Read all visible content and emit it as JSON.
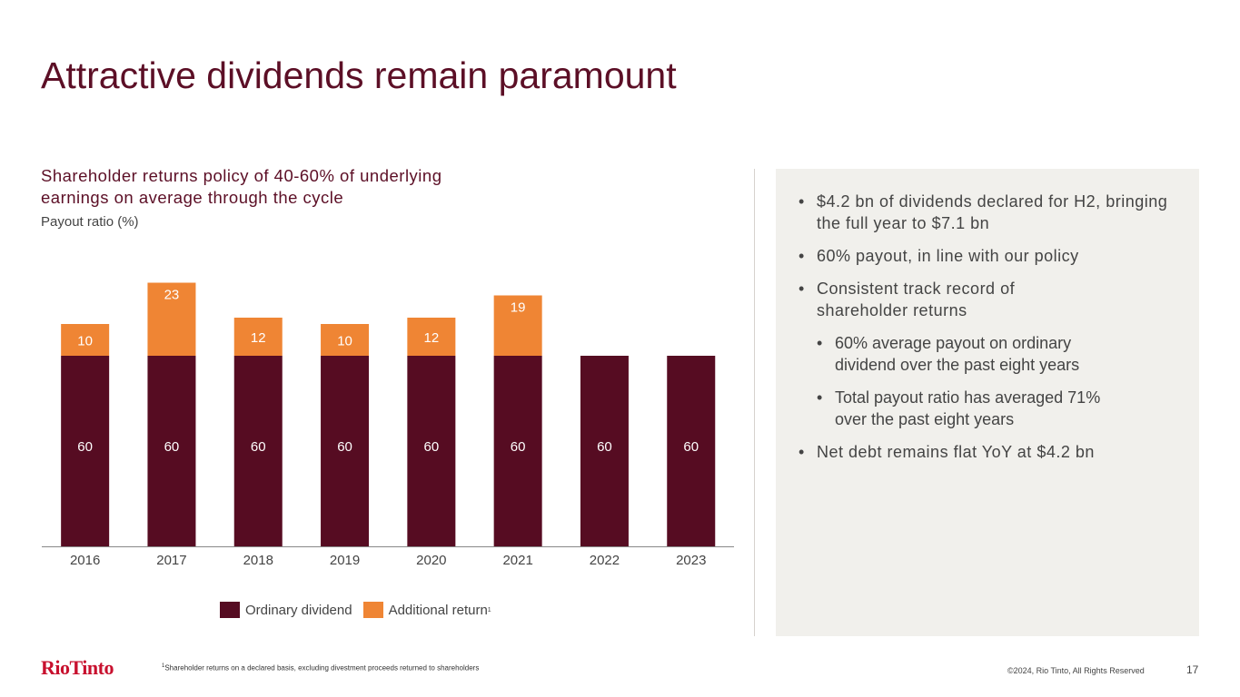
{
  "slide": {
    "title": "Attractive dividends remain paramount",
    "subtitle": "Shareholder returns policy of 40-60% of underlying earnings on average through the cycle",
    "unit_label": "Payout ratio (%)"
  },
  "chart_data": {
    "type": "bar",
    "stacked": true,
    "title": "Payout ratio (%)",
    "categories": [
      "2016",
      "2017",
      "2018",
      "2019",
      "2020",
      "2021",
      "2022",
      "2023"
    ],
    "series": [
      {
        "name": "Ordinary dividend",
        "color": "#560c22",
        "values": [
          60,
          60,
          60,
          60,
          60,
          60,
          60,
          60
        ]
      },
      {
        "name": "Additional return",
        "color": "#ef8534",
        "values": [
          10,
          23,
          12,
          10,
          12,
          19,
          0,
          0
        ]
      }
    ],
    "ylim": [
      0,
      90
    ],
    "xlabel": "",
    "ylabel": "Payout ratio (%)"
  },
  "legend": {
    "ordinary": "Ordinary dividend",
    "additional": "Additional return",
    "additional_sup": "1"
  },
  "panel": {
    "bullets": [
      "$4.2 bn of dividends declared for H2, bringing the full year to $7.1 bn",
      "60% payout, in line with our policy",
      "Consistent track record of shareholder returns",
      "60% average payout on ordinary dividend over the past eight years",
      "Total payout ratio has averaged 71% over the past eight years",
      "Net debt remains flat YoY at $4.2 bn"
    ]
  },
  "footer": {
    "logo": "RioTinto",
    "footnote_sup": "1",
    "footnote": "Shareholder returns on a declared basis, excluding divestment proceeds returned to shareholders",
    "copyright": "©2024, Rio Tinto, All Rights Reserved",
    "page_number": "17"
  }
}
